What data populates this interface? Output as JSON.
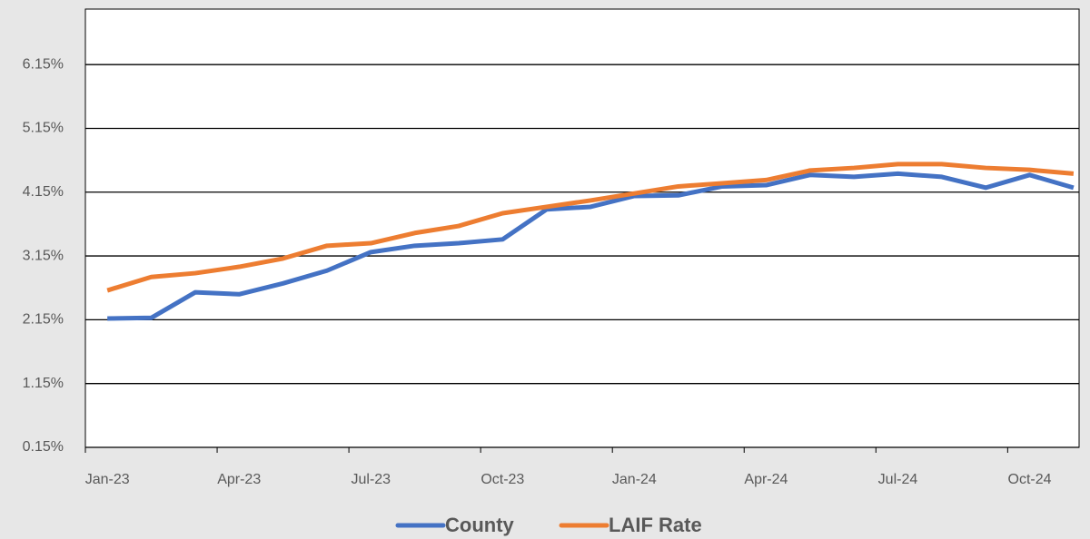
{
  "chart_data": {
    "type": "line",
    "categories": [
      "Jan-23",
      null,
      null,
      "Apr-23",
      null,
      null,
      "Jul-23",
      null,
      null,
      "Oct-23",
      null,
      null,
      "Jan-24",
      null,
      null,
      "Apr-24",
      null,
      null,
      "Jul-24",
      null,
      null,
      "Oct-24",
      null
    ],
    "series": [
      {
        "name": "County",
        "color": "#4472c4",
        "values": [
          2.17,
          2.18,
          2.58,
          2.55,
          2.72,
          2.92,
          3.21,
          3.31,
          3.35,
          3.41,
          3.88,
          3.92,
          4.09,
          4.1,
          4.24,
          4.26,
          4.42,
          4.39,
          4.44,
          4.39,
          4.22,
          4.42,
          4.22
        ]
      },
      {
        "name": "LAIF Rate",
        "color": "#ed7d31",
        "values": [
          2.61,
          2.82,
          2.88,
          2.98,
          3.11,
          3.31,
          3.35,
          3.51,
          3.62,
          3.82,
          3.92,
          4.02,
          4.13,
          4.24,
          4.29,
          4.34,
          4.49,
          4.53,
          4.59,
          4.59,
          4.53,
          4.5,
          4.44
        ]
      }
    ],
    "ylim": [
      0.15,
      7.02
    ],
    "yticks": [
      {
        "value": 0.15,
        "label": "0.15%"
      },
      {
        "value": 1.15,
        "label": "1.15%"
      },
      {
        "value": 2.15,
        "label": "2.15%"
      },
      {
        "value": 3.15,
        "label": "3.15%"
      },
      {
        "value": 4.15,
        "label": "4.15%"
      },
      {
        "value": 5.15,
        "label": "5.15%"
      },
      {
        "value": 6.15,
        "label": "6.15%"
      }
    ],
    "grid": true,
    "legend": "bottom"
  }
}
